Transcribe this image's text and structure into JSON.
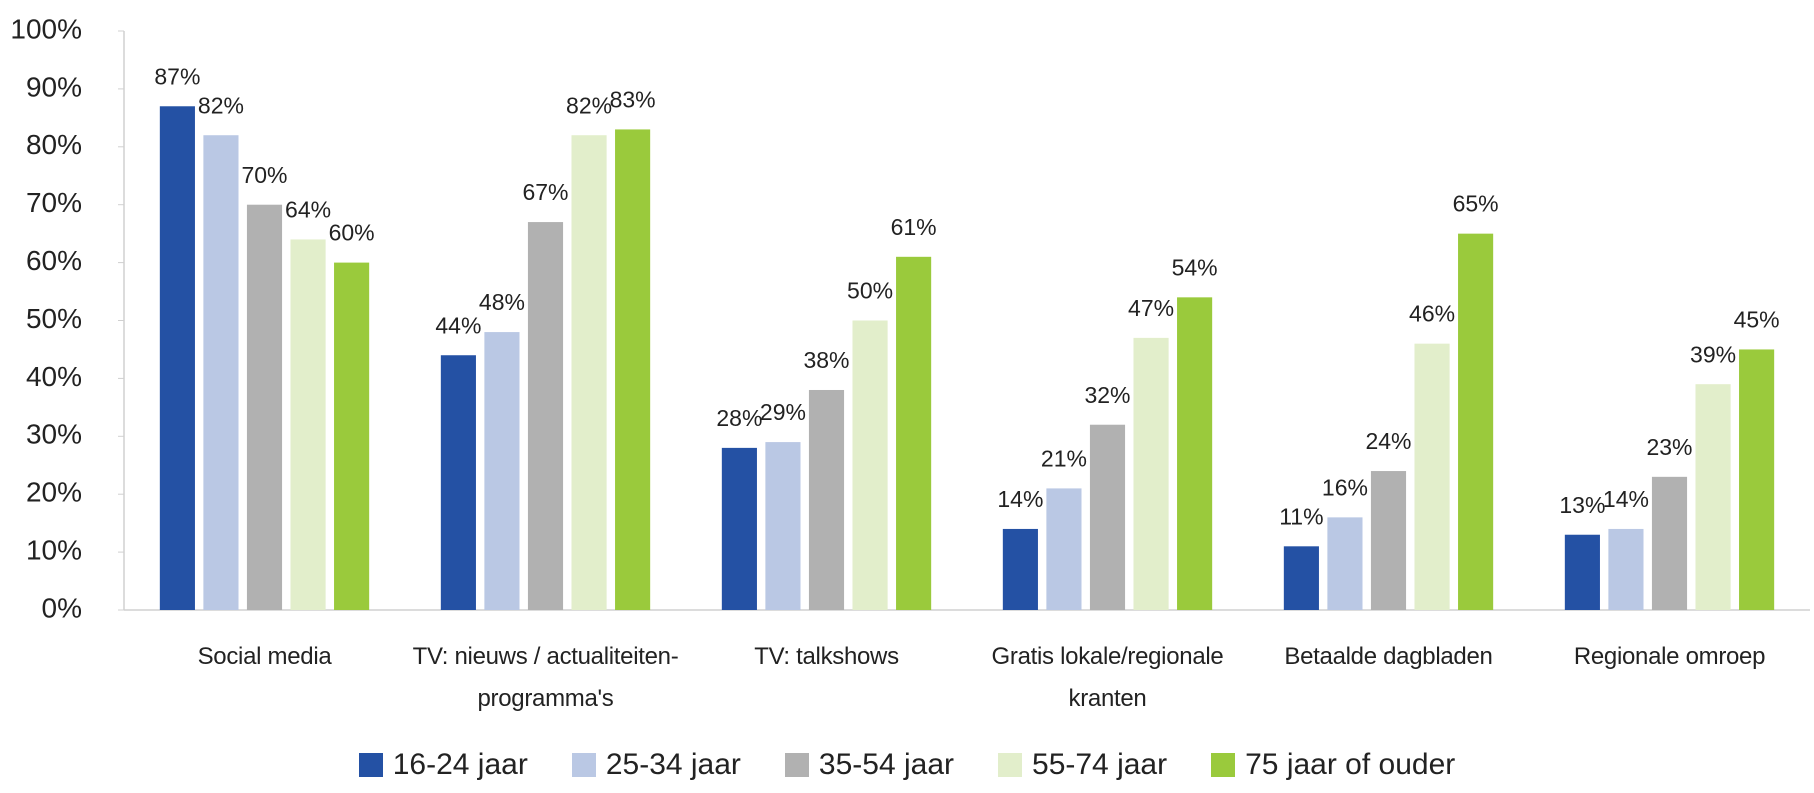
{
  "chart_data": {
    "type": "bar",
    "categories": [
      "Social media",
      "TV: nieuws / actualiteiten-programma's",
      "TV: talkshows",
      "Gratis lokale/regionale kranten",
      "Betaalde dagbladen",
      "Regionale omroep"
    ],
    "series": [
      {
        "name": "16-24 jaar",
        "color": "#2451a4",
        "values": [
          87,
          44,
          28,
          14,
          11,
          13
        ],
        "value_labels": [
          "87%",
          "44%",
          "28%",
          "14%",
          "11%",
          "13%"
        ]
      },
      {
        "name": "25-34 jaar",
        "color": "#bac8e4",
        "values": [
          82,
          48,
          29,
          21,
          16,
          14
        ],
        "value_labels": [
          "82%",
          "48%",
          "29%",
          "21%",
          "16%",
          "14%"
        ]
      },
      {
        "name": "35-54 jaar",
        "color": "#b1b1b1",
        "values": [
          70,
          67,
          38,
          32,
          24,
          23
        ],
        "value_labels": [
          "70%",
          "67%",
          "38%",
          "32%",
          "24%",
          "23%"
        ]
      },
      {
        "name": "55-74 jaar",
        "color": "#e2eecb",
        "values": [
          64,
          82,
          50,
          47,
          46,
          39
        ],
        "value_labels": [
          "64%",
          "82%",
          "50%",
          "47%",
          "46%",
          "39%"
        ]
      },
      {
        "name": "75 jaar of ouder",
        "color": "#9aca3c",
        "values": [
          60,
          83,
          61,
          54,
          65,
          45
        ],
        "value_labels": [
          "60%",
          "83%",
          "61%",
          "54%",
          "65%",
          "45%"
        ]
      }
    ],
    "ylim": [
      0,
      100
    ],
    "yticks": [
      {
        "value": 0,
        "label": "0%"
      },
      {
        "value": 10,
        "label": "10%"
      },
      {
        "value": 20,
        "label": "20%"
      },
      {
        "value": 30,
        "label": "30%"
      },
      {
        "value": 40,
        "label": "40%"
      },
      {
        "value": 50,
        "label": "50%"
      },
      {
        "value": 60,
        "label": "60%"
      },
      {
        "value": 70,
        "label": "70%"
      },
      {
        "value": 80,
        "label": "80%"
      },
      {
        "value": 90,
        "label": "90%"
      },
      {
        "value": 100,
        "label": "100%"
      }
    ],
    "grid": false,
    "legend": "bottom"
  }
}
